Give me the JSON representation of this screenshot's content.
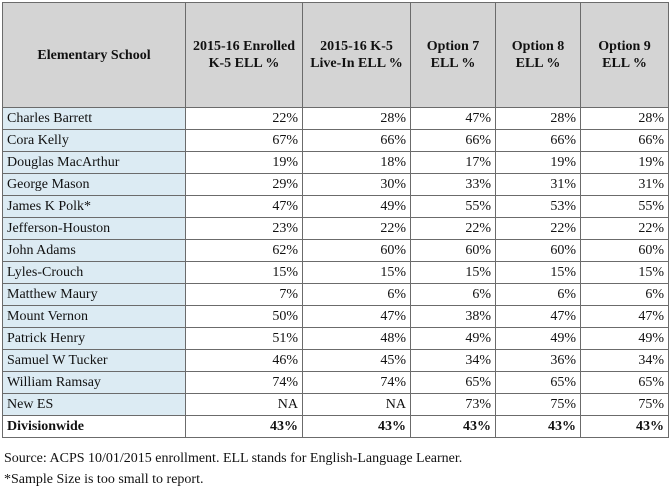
{
  "table": {
    "headers": [
      "Elementary School",
      "2015-16 Enrolled K-5 ELL %",
      "2015-16 K-5 Live-In ELL %",
      "Option 7 ELL %",
      "Option 8 ELL %",
      "Option 9 ELL %"
    ],
    "rows": [
      [
        "Charles Barrett",
        "22%",
        "28%",
        "47%",
        "28%",
        "28%"
      ],
      [
        "Cora Kelly",
        "67%",
        "66%",
        "66%",
        "66%",
        "66%"
      ],
      [
        "Douglas MacArthur",
        "19%",
        "18%",
        "17%",
        "19%",
        "19%"
      ],
      [
        "George Mason",
        "29%",
        "30%",
        "33%",
        "31%",
        "31%"
      ],
      [
        "James K Polk*",
        "47%",
        "49%",
        "55%",
        "53%",
        "55%"
      ],
      [
        "Jefferson-Houston",
        "23%",
        "22%",
        "22%",
        "22%",
        "22%"
      ],
      [
        "John Adams",
        "62%",
        "60%",
        "60%",
        "60%",
        "60%"
      ],
      [
        "Lyles-Crouch",
        "15%",
        "15%",
        "15%",
        "15%",
        "15%"
      ],
      [
        "Matthew Maury",
        "7%",
        "6%",
        "6%",
        "6%",
        "6%"
      ],
      [
        "Mount Vernon",
        "50%",
        "47%",
        "38%",
        "47%",
        "47%"
      ],
      [
        "Patrick Henry",
        "51%",
        "48%",
        "49%",
        "49%",
        "49%"
      ],
      [
        "Samuel W Tucker",
        "46%",
        "45%",
        "34%",
        "36%",
        "34%"
      ],
      [
        "William Ramsay",
        "74%",
        "74%",
        "65%",
        "65%",
        "65%"
      ],
      [
        "New ES",
        "NA",
        "NA",
        "73%",
        "75%",
        "75%"
      ]
    ],
    "total": [
      "Divisionwide",
      "43%",
      "43%",
      "43%",
      "43%",
      "43%"
    ]
  },
  "notes": {
    "source": "Source: ACPS 10/01/2015 enrollment.  ELL stands for English-Language Learner.",
    "sample": "*Sample Size is too small to report."
  },
  "colors": {
    "header_bg": "#d4d4d4",
    "school_col_bg": "#dcebf3",
    "border": "#6b6b6b"
  }
}
